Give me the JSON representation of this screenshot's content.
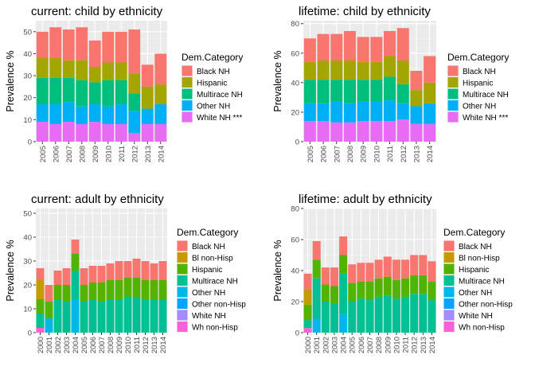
{
  "chart_data": [
    {
      "type": "bar",
      "stacked": true,
      "title": "current: child by ethnicity",
      "ylabel": "Prevalence %",
      "xlabel": "",
      "ylim": [
        0,
        55
      ],
      "yticks": [
        0,
        10,
        20,
        30,
        40,
        50
      ],
      "legend_title": "Dem.Category",
      "legend_position": "right",
      "categories": [
        "2005",
        "2006",
        "2007",
        "2008",
        "2009",
        "2010",
        "2011",
        "2012",
        "2013",
        "2014"
      ],
      "series": [
        {
          "name": "Black NH",
          "color": "#F8766D",
          "values": [
            12,
            14,
            14,
            15,
            12,
            14,
            14,
            20,
            10,
            14
          ]
        },
        {
          "name": "Hispanic",
          "color": "#A3A500",
          "values": [
            9,
            9,
            8,
            9,
            7,
            8,
            8,
            9,
            10,
            9
          ]
        },
        {
          "name": "Multirace NH",
          "color": "#00BF7D",
          "values": [
            12,
            12,
            11,
            12,
            10,
            12,
            11,
            8,
            0,
            0
          ]
        },
        {
          "name": "Other NH",
          "color": "#00B0F6",
          "values": [
            8,
            9,
            9,
            8,
            8,
            8,
            9,
            10,
            7,
            9
          ]
        },
        {
          "name": "White NH ***",
          "color": "#E76BF3",
          "values": [
            9,
            8,
            9,
            8,
            9,
            8,
            8,
            4,
            8,
            8
          ]
        }
      ]
    },
    {
      "type": "bar",
      "stacked": true,
      "title": "lifetime: child by ethnicity",
      "ylabel": "Prevalence %",
      "xlabel": "",
      "ylim": [
        0,
        82
      ],
      "yticks": [
        0,
        20,
        40,
        60,
        80
      ],
      "legend_title": "Dem.Category",
      "legend_position": "right",
      "categories": [
        "2005",
        "2006",
        "2007",
        "2008",
        "2009",
        "2010",
        "2011",
        "2012",
        "2013",
        "2014"
      ],
      "series": [
        {
          "name": "Black NH",
          "color": "#F8766D",
          "values": [
            16,
            18,
            18,
            20,
            17,
            17,
            17,
            22,
            13,
            18
          ]
        },
        {
          "name": "Hispanic",
          "color": "#A3A500",
          "values": [
            12,
            13,
            13,
            13,
            12,
            12,
            14,
            16,
            11,
            14
          ]
        },
        {
          "name": "Multirace NH",
          "color": "#00BF7D",
          "values": [
            16,
            16,
            15,
            16,
            15,
            15,
            16,
            13,
            0,
            0
          ]
        },
        {
          "name": "Other NH",
          "color": "#00B0F6",
          "values": [
            12,
            12,
            14,
            13,
            13,
            13,
            14,
            11,
            12,
            14
          ]
        },
        {
          "name": "White NH ***",
          "color": "#E76BF3",
          "values": [
            14,
            14,
            13,
            13,
            14,
            14,
            14,
            15,
            12,
            12
          ]
        }
      ]
    },
    {
      "type": "bar",
      "stacked": true,
      "title": "current: adult by ethnicity",
      "ylabel": "Prevalence %",
      "xlabel": "",
      "ylim": [
        0,
        52
      ],
      "yticks": [
        0,
        10,
        20,
        30,
        40,
        50
      ],
      "legend_title": "Dem.Category",
      "legend_position": "right",
      "categories": [
        "2000",
        "2001",
        "2002",
        "2003",
        "2004",
        "2005",
        "2006",
        "2007",
        "2008",
        "2009",
        "2010",
        "2011",
        "2012",
        "2013",
        "2014"
      ],
      "series": [
        {
          "name": "Black NH",
          "color": "#F8766D",
          "values": [
            5,
            7,
            6,
            7,
            6,
            7,
            7,
            7,
            7,
            8,
            7,
            8,
            8,
            7,
            8
          ]
        },
        {
          "name": "Bl non-Hisp",
          "color": "#C49A00",
          "values": [
            8,
            0,
            0,
            0,
            0,
            0,
            0,
            0,
            0,
            0,
            0,
            0,
            0,
            0,
            0
          ]
        },
        {
          "name": "Hispanic",
          "color": "#53B400",
          "values": [
            6,
            7,
            6,
            7,
            7,
            7,
            7,
            8,
            8,
            8,
            8,
            8,
            8,
            8,
            8
          ]
        },
        {
          "name": "Multirace NH",
          "color": "#00C094",
          "values": [
            6,
            0,
            14,
            13,
            12,
            13,
            14,
            13,
            14,
            14,
            15,
            15,
            14,
            14,
            14
          ]
        },
        {
          "name": "Other NH",
          "color": "#00B6EB",
          "values": [
            0,
            6,
            0,
            0,
            14,
            0,
            0,
            0,
            0,
            0,
            0,
            0,
            0,
            0,
            0
          ]
        },
        {
          "name": "Other non-Hisp",
          "color": "#06A4FF",
          "values": [
            0,
            0,
            0,
            0,
            0,
            0,
            0,
            0,
            0,
            0,
            0,
            0,
            0,
            0,
            0
          ]
        },
        {
          "name": "White NH",
          "color": "#A58AFF",
          "values": [
            0,
            0,
            0,
            0,
            0,
            0,
            0,
            0,
            0,
            0,
            0,
            0,
            0,
            0,
            0
          ]
        },
        {
          "name": "Wh non-Hisp",
          "color": "#FB61D7",
          "values": [
            2,
            0,
            0,
            0,
            0,
            0,
            0,
            0,
            0,
            0,
            0,
            0,
            0,
            0,
            0
          ]
        }
      ]
    },
    {
      "type": "bar",
      "stacked": true,
      "title": "lifetime: adult by ethnicity",
      "ylabel": "Prevalence %",
      "xlabel": "",
      "ylim": [
        0,
        80
      ],
      "yticks": [
        0,
        20,
        40,
        60,
        80
      ],
      "legend_title": "Dem.Category",
      "legend_position": "right",
      "categories": [
        "2000",
        "2001",
        "2002",
        "2003",
        "2004",
        "2005",
        "2006",
        "2007",
        "2008",
        "2009",
        "2010",
        "2011",
        "2012",
        "2013",
        "2014"
      ],
      "series": [
        {
          "name": "Black NH",
          "color": "#F8766D",
          "values": [
            10,
            12,
            11,
            12,
            12,
            12,
            12,
            12,
            12,
            13,
            13,
            12,
            13,
            13,
            13
          ]
        },
        {
          "name": "Bl non-Hisp",
          "color": "#C49A00",
          "values": [
            10,
            0,
            0,
            0,
            0,
            0,
            0,
            0,
            0,
            0,
            0,
            0,
            0,
            0,
            0
          ]
        },
        {
          "name": "Hispanic",
          "color": "#53B400",
          "values": [
            10,
            12,
            11,
            11,
            12,
            12,
            11,
            12,
            12,
            12,
            12,
            12,
            12,
            12,
            12
          ]
        },
        {
          "name": "Multirace NH",
          "color": "#00C094",
          "values": [
            5,
            26,
            20,
            19,
            26,
            20,
            22,
            21,
            23,
            24,
            22,
            23,
            25,
            25,
            21
          ]
        },
        {
          "name": "Other NH",
          "color": "#00B6EB",
          "values": [
            0,
            9,
            0,
            0,
            12,
            0,
            0,
            0,
            0,
            0,
            0,
            0,
            0,
            0,
            0
          ]
        },
        {
          "name": "Other non-Hisp",
          "color": "#06A4FF",
          "values": [
            0,
            0,
            0,
            0,
            0,
            0,
            0,
            0,
            0,
            0,
            0,
            0,
            0,
            0,
            0
          ]
        },
        {
          "name": "White NH",
          "color": "#A58AFF",
          "values": [
            0,
            0,
            0,
            0,
            0,
            0,
            0,
            0,
            0,
            0,
            0,
            0,
            0,
            0,
            0
          ]
        },
        {
          "name": "Wh non-Hisp",
          "color": "#FB61D7",
          "values": [
            3,
            0,
            0,
            0,
            0,
            0,
            0,
            0,
            0,
            0,
            0,
            0,
            0,
            0,
            0
          ]
        }
      ]
    }
  ]
}
